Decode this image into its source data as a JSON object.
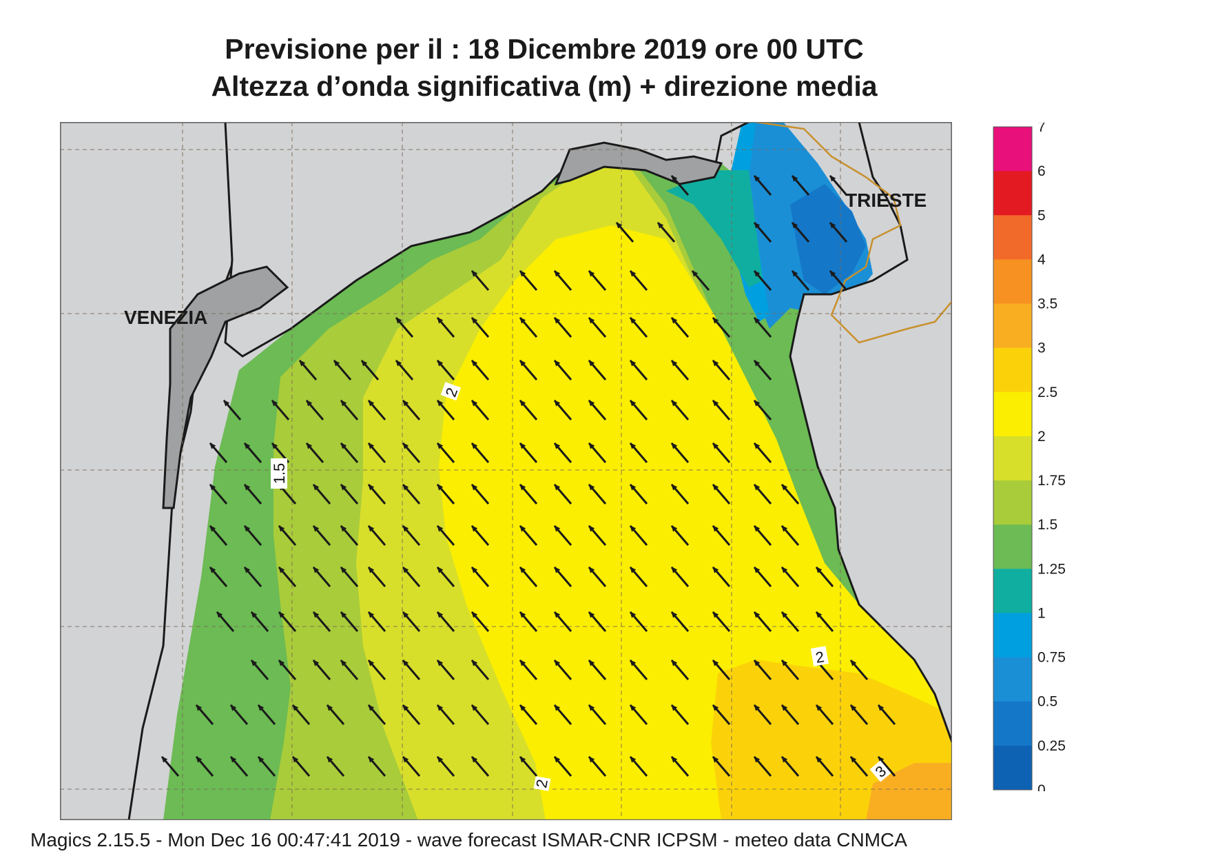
{
  "title": {
    "line1": "Previsione per il  :  18 Dicembre  2019   ore 00 UTC",
    "line2": "Altezza d’onda significativa (m) + direzione media"
  },
  "map": {
    "cities": [
      "VENEZIA",
      "TRIESTE"
    ],
    "contour_labels": [
      "2",
      "1.5",
      "2",
      "2",
      "3"
    ],
    "arrow_direction": "northwest"
  },
  "legend": {
    "labels": [
      "7",
      "6",
      "5",
      "4",
      "3.5",
      "3",
      "2.5",
      "2",
      "1.75",
      "1.5",
      "1.25",
      "1",
      "0.75",
      "0.5",
      "0.25",
      "0"
    ],
    "colors": [
      "#e8107a",
      "#e41a22",
      "#f26a2a",
      "#f79222",
      "#f9ae22",
      "#fbd20a",
      "#fbee00",
      "#d8df2a",
      "#a9cc3a",
      "#6cbb54",
      "#10aea0",
      "#00a0e0",
      "#1a8fd6",
      "#1577c8",
      "#0e62b4"
    ]
  },
  "footer": "Magics 2.15.5 - Mon Dec 16 00:47:41 2019 - wave forecast  ISMAR-CNR  ICPSM - meteo data   CNMCA"
}
